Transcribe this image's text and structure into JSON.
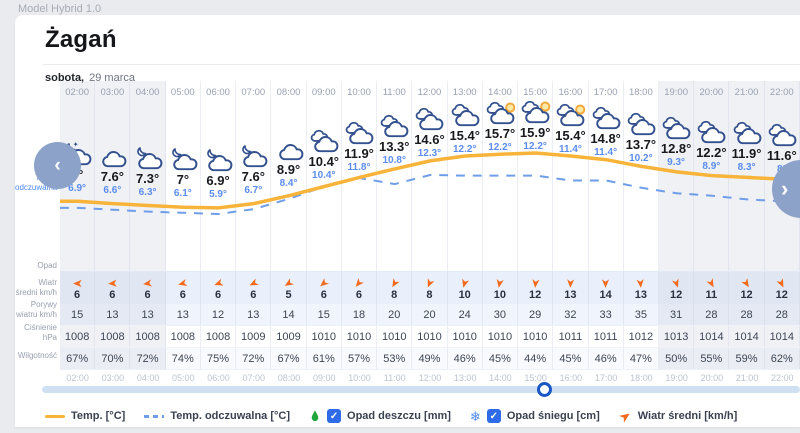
{
  "app": {
    "model_label": "Model Hybrid 1.0"
  },
  "header": {
    "city": "Żagań",
    "day": "sobota,",
    "date": "29 marca"
  },
  "row_labels": {
    "temp": "Temp.",
    "feels": "Temp. odczuwalna",
    "precip": "Opad",
    "wind": "Wiatr średni km/h",
    "gusts": "Porywy wiatru km/h",
    "pressure": "Ciśnienie hPa",
    "humidity": "Wilgotność"
  },
  "columns": [
    {
      "time": "02:00",
      "icon": "cloud-moon-star",
      "temp_label": "8°",
      "feels_label": "6.9°",
      "wind": "6",
      "gust": "15",
      "pressure": "1008",
      "humidity": "67%",
      "wind_dir_deg": 180,
      "shaded": true
    },
    {
      "time": "03:00",
      "icon": "cloud",
      "temp_label": "7.6°",
      "feels_label": "6.6°",
      "wind": "6",
      "gust": "13",
      "pressure": "1008",
      "humidity": "70%",
      "wind_dir_deg": 176,
      "shaded": true
    },
    {
      "time": "04:00",
      "icon": "cloud-moon",
      "temp_label": "7.3°",
      "feels_label": "6.3°",
      "wind": "6",
      "gust": "13",
      "pressure": "1008",
      "humidity": "72%",
      "wind_dir_deg": 172,
      "shaded": true
    },
    {
      "time": "05:00",
      "icon": "cloud-moon",
      "temp_label": "7°",
      "feels_label": "6.1°",
      "wind": "6",
      "gust": "13",
      "pressure": "1008",
      "humidity": "74%",
      "wind_dir_deg": 166,
      "shaded": false
    },
    {
      "time": "06:00",
      "icon": "cloud-moon",
      "temp_label": "6.9°",
      "feels_label": "5.9°",
      "wind": "6",
      "gust": "12",
      "pressure": "1008",
      "humidity": "75%",
      "wind_dir_deg": 160,
      "shaded": false
    },
    {
      "time": "07:00",
      "icon": "cloud-moon",
      "temp_label": "7.6°",
      "feels_label": "6.7°",
      "wind": "6",
      "gust": "13",
      "pressure": "1009",
      "humidity": "72%",
      "wind_dir_deg": 154,
      "shaded": false
    },
    {
      "time": "08:00",
      "icon": "cloud",
      "temp_label": "8.9°",
      "feels_label": "8.4°",
      "wind": "5",
      "gust": "14",
      "pressure": "1009",
      "humidity": "67%",
      "wind_dir_deg": 148,
      "shaded": false
    },
    {
      "time": "09:00",
      "icon": "clouds",
      "temp_label": "10.4°",
      "feels_label": "10.4°",
      "wind": "6",
      "gust": "15",
      "pressure": "1010",
      "humidity": "61%",
      "wind_dir_deg": 140,
      "shaded": false
    },
    {
      "time": "10:00",
      "icon": "clouds",
      "temp_label": "11.9°",
      "feels_label": "11.8°",
      "wind": "6",
      "gust": "18",
      "pressure": "1010",
      "humidity": "57%",
      "wind_dir_deg": 130,
      "shaded": false
    },
    {
      "time": "11:00",
      "icon": "clouds",
      "temp_label": "13.3°",
      "feels_label": "10.8°",
      "wind": "8",
      "gust": "20",
      "pressure": "1010",
      "humidity": "53%",
      "wind_dir_deg": 120,
      "shaded": false
    },
    {
      "time": "12:00",
      "icon": "clouds",
      "temp_label": "14.6°",
      "feels_label": "12.3°",
      "wind": "8",
      "gust": "20",
      "pressure": "1010",
      "humidity": "49%",
      "wind_dir_deg": 113,
      "shaded": false
    },
    {
      "time": "13:00",
      "icon": "clouds",
      "temp_label": "15.4°",
      "feels_label": "12.2°",
      "wind": "10",
      "gust": "24",
      "pressure": "1010",
      "humidity": "46%",
      "wind_dir_deg": 106,
      "shaded": false
    },
    {
      "time": "14:00",
      "icon": "cloud-sun",
      "temp_label": "15.7°",
      "feels_label": "12.2°",
      "wind": "10",
      "gust": "30",
      "pressure": "1010",
      "humidity": "45%",
      "wind_dir_deg": 100,
      "shaded": false
    },
    {
      "time": "15:00",
      "icon": "cloud-sun",
      "temp_label": "15.9°",
      "feels_label": "12.2°",
      "wind": "12",
      "gust": "29",
      "pressure": "1010",
      "humidity": "44%",
      "wind_dir_deg": 95,
      "shaded": false
    },
    {
      "time": "16:00",
      "icon": "cloud-sun",
      "temp_label": "15.4°",
      "feels_label": "11.4°",
      "wind": "13",
      "gust": "32",
      "pressure": "1011",
      "humidity": "45%",
      "wind_dir_deg": 92,
      "shaded": false
    },
    {
      "time": "17:00",
      "icon": "clouds",
      "temp_label": "14.8°",
      "feels_label": "11.4°",
      "wind": "14",
      "gust": "33",
      "pressure": "1011",
      "humidity": "46%",
      "wind_dir_deg": 90,
      "shaded": false
    },
    {
      "time": "18:00",
      "icon": "clouds",
      "temp_label": "13.7°",
      "feels_label": "10.2°",
      "wind": "13",
      "gust": "35",
      "pressure": "1012",
      "humidity": "47%",
      "wind_dir_deg": 85,
      "shaded": false
    },
    {
      "time": "19:00",
      "icon": "clouds",
      "temp_label": "12.8°",
      "feels_label": "9.3°",
      "wind": "12",
      "gust": "31",
      "pressure": "1013",
      "humidity": "50%",
      "wind_dir_deg": 72,
      "shaded": true
    },
    {
      "time": "20:00",
      "icon": "clouds",
      "temp_label": "12.2°",
      "feels_label": "8.9°",
      "wind": "11",
      "gust": "28",
      "pressure": "1014",
      "humidity": "55%",
      "wind_dir_deg": 62,
      "shaded": true
    },
    {
      "time": "21:00",
      "icon": "clouds",
      "temp_label": "11.9°",
      "feels_label": "8.3°",
      "wind": "12",
      "gust": "28",
      "pressure": "1014",
      "humidity": "59%",
      "wind_dir_deg": 58,
      "shaded": true
    },
    {
      "time": "22:00",
      "icon": "clouds",
      "temp_label": "11.6°",
      "feels_label": "8°",
      "wind": "12",
      "gust": "28",
      "pressure": "1014",
      "humidity": "62%",
      "wind_dir_deg": 64,
      "shaded": true
    }
  ],
  "slider": {
    "position_pct": 66.4
  },
  "nav": {
    "prev_label": "‹",
    "next_label": "›"
  },
  "icons": {
    "check": "✓",
    "snowflake": "❄"
  },
  "legend": [
    {
      "id": "temp",
      "label": "Temp. [°C]",
      "swatch": "line-solid",
      "color": "#F8B43A"
    },
    {
      "id": "feels",
      "label": "Temp. odczuwalna [°C]",
      "swatch": "line-dashed",
      "color": "#6F9EE8"
    },
    {
      "id": "rain",
      "label": "Opad deszczu [mm]",
      "swatch": "droplet-checkbox",
      "color": "#1FA63C",
      "checked": true
    },
    {
      "id": "snow",
      "label": "Opad śniegu [cm]",
      "swatch": "snowflake-checkbox",
      "color": "#4F8BEF",
      "checked": true
    },
    {
      "id": "wind",
      "label": "Wiatr średni [km/h]",
      "swatch": "wind-arrow",
      "color": "#F26A1E"
    }
  ],
  "chart_data": {
    "type": "line",
    "x": [
      "02:00",
      "03:00",
      "04:00",
      "05:00",
      "06:00",
      "07:00",
      "08:00",
      "09:00",
      "10:00",
      "11:00",
      "12:00",
      "13:00",
      "14:00",
      "15:00",
      "16:00",
      "17:00",
      "18:00",
      "19:00",
      "20:00",
      "21:00",
      "22:00"
    ],
    "series": [
      {
        "name": "Temp. [°C]",
        "style": "solid",
        "color": "#F8B43A",
        "values": [
          8,
          7.6,
          7.3,
          7,
          6.9,
          7.6,
          8.9,
          10.4,
          11.9,
          13.3,
          14.6,
          15.4,
          15.7,
          15.9,
          15.4,
          14.8,
          13.7,
          12.8,
          12.2,
          11.9,
          11.6
        ]
      },
      {
        "name": "Temp. odczuwalna [°C]",
        "style": "dashed",
        "color": "#6F9EE8",
        "values": [
          6.9,
          6.6,
          6.3,
          6.1,
          5.9,
          6.7,
          8.4,
          10.4,
          11.8,
          10.8,
          12.3,
          12.2,
          12.2,
          12.2,
          11.4,
          11.4,
          10.2,
          9.3,
          8.9,
          8.3,
          8
        ]
      }
    ],
    "tables": {
      "wind_kmh": [
        6,
        6,
        6,
        6,
        6,
        6,
        5,
        6,
        6,
        8,
        8,
        10,
        10,
        12,
        13,
        14,
        13,
        12,
        11,
        12,
        12
      ],
      "gusts_kmh": [
        15,
        13,
        13,
        13,
        12,
        13,
        14,
        15,
        18,
        20,
        20,
        24,
        30,
        29,
        32,
        33,
        35,
        31,
        28,
        28,
        28
      ],
      "pressure_hpa": [
        1008,
        1008,
        1008,
        1008,
        1008,
        1009,
        1009,
        1010,
        1010,
        1010,
        1010,
        1010,
        1010,
        1010,
        1011,
        1011,
        1012,
        1013,
        1014,
        1014,
        1014
      ],
      "humidity_pct": [
        67,
        70,
        72,
        74,
        75,
        72,
        67,
        61,
        57,
        53,
        49,
        46,
        45,
        44,
        45,
        46,
        47,
        50,
        55,
        59,
        62
      ]
    },
    "ylabel": "°C",
    "ylim": [
      5,
      17
    ],
    "grid": false,
    "legend_position": "bottom"
  }
}
